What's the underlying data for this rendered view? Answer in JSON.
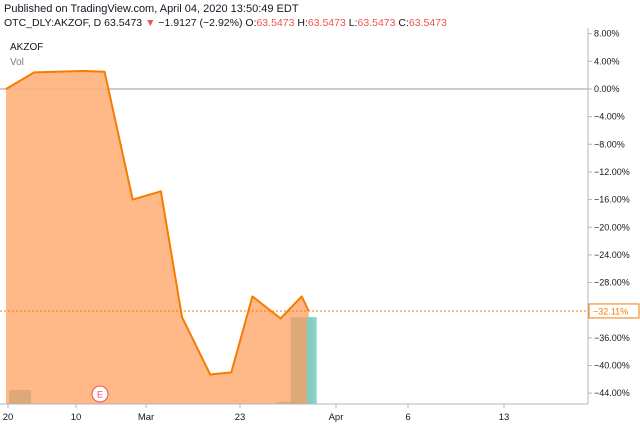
{
  "header": {
    "published": "Published on TradingView.com, April 04, 2020 13:50:49 EDT",
    "symbol": "OTC_DLY:AKZOF, D",
    "last": "63.5473",
    "change": "−1.9127 (−2.92%)",
    "o_label": "O:",
    "o_value": "63.5473",
    "h_label": "H:",
    "h_value": "63.5473",
    "l_label": "L:",
    "l_value": "63.5473",
    "c_label": "C:",
    "c_value": "63.5473"
  },
  "legend": {
    "ticker": "AKZOF",
    "vol": "Vol"
  },
  "earnings_marker": "E",
  "colors": {
    "line": "#f57c00",
    "fill": "#ffb07a",
    "neg": "#ef5350",
    "last_vol": "#7ecdc7",
    "vol": "#d4a373"
  },
  "chart_data": {
    "type": "area",
    "x": [
      "2020-02-20",
      "2020-02-24",
      "2020-03-02",
      "2020-03-05",
      "2020-03-09",
      "2020-03-13",
      "2020-03-16",
      "2020-03-20",
      "2020-03-23",
      "2020-03-26",
      "2020-03-30",
      "2020-04-02",
      "2020-04-03"
    ],
    "values": [
      0.0,
      2.4,
      2.6,
      2.5,
      -16.0,
      -14.8,
      -33.0,
      -41.3,
      -41.0,
      -30.0,
      -33.2,
      -30.0,
      -32.11
    ],
    "last_value_label": "−32.11%",
    "y_ticks": [
      "8.00%",
      "4.00%",
      "0.00%",
      "−4.00%",
      "−8.00%",
      "−12.00%",
      "−16.00%",
      "−20.00%",
      "−24.00%",
      "−28.00%",
      "−32.00%",
      "−36.00%",
      "−40.00%",
      "−44.00%"
    ],
    "x_ticks": [
      "20",
      "10",
      "Mar",
      "23",
      "Apr",
      "6",
      "13"
    ],
    "ylim": [
      -46.5,
      8
    ],
    "volume": [
      {
        "x": "2020-02-22",
        "height": 1.0
      },
      {
        "x": "2020-03-31",
        "height": 0.15
      },
      {
        "x": "2020-04-02",
        "height": 6.2
      },
      {
        "x": "2020-04-03",
        "height": 6.2,
        "last": true
      }
    ],
    "legend": "top-left",
    "grid": false
  }
}
